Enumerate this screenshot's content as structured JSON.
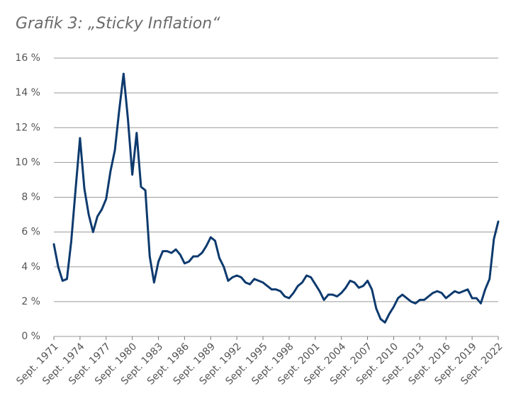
{
  "chart_data": {
    "type": "line",
    "title": "Grafik 3: „Sticky Inflation“",
    "categories": [
      "Sept. 1971",
      null,
      null,
      null,
      null,
      null,
      "Sept. 1974",
      null,
      null,
      null,
      null,
      null,
      "Sept. 1977",
      null,
      null,
      null,
      null,
      null,
      "Sept. 1980",
      null,
      null,
      null,
      null,
      null,
      "Sept. 1983",
      null,
      null,
      null,
      null,
      null,
      "Sept. 1986",
      null,
      null,
      null,
      null,
      null,
      "Sept. 1989",
      null,
      null,
      null,
      null,
      null,
      "Sept. 1992",
      null,
      null,
      null,
      null,
      null,
      "Sept. 1995",
      null,
      null,
      null,
      null,
      null,
      "Sept. 1998",
      null,
      null,
      null,
      null,
      null,
      "Sept. 2001",
      null,
      null,
      null,
      null,
      null,
      "Sept. 2004",
      null,
      null,
      null,
      null,
      null,
      "Sept. 2007",
      null,
      null,
      null,
      null,
      null,
      "Sept. 2010",
      null,
      null,
      null,
      null,
      null,
      "Sept. 2013",
      null,
      null,
      null,
      null,
      null,
      "Sept. 2016",
      null,
      null,
      null,
      null,
      null,
      "Sept. 2019",
      null,
      null,
      null,
      null,
      null,
      "Sept. 2022"
    ],
    "series": [
      {
        "color": "#0d3a6e",
        "values": [
          5.3,
          4.0,
          3.2,
          3.3,
          5.5,
          8.5,
          11.4,
          8.5,
          7.0,
          6.0,
          6.9,
          7.3,
          7.9,
          9.5,
          10.7,
          13.0,
          15.1,
          12.5,
          9.3,
          11.7,
          8.6,
          8.4,
          4.6,
          3.1,
          4.3,
          4.9,
          4.9,
          4.8,
          5.0,
          4.7,
          4.2,
          4.3,
          4.6,
          4.6,
          4.8,
          5.2,
          5.7,
          5.5,
          4.5,
          4.0,
          3.2,
          3.4,
          3.5,
          3.4,
          3.1,
          3.0,
          3.3,
          3.2,
          3.1,
          2.9,
          2.7,
          2.7,
          2.6,
          2.3,
          2.2,
          2.5,
          2.9,
          3.1,
          3.5,
          3.4,
          3.0,
          2.6,
          2.1,
          2.4,
          2.4,
          2.3,
          2.5,
          2.8,
          3.2,
          3.1,
          2.8,
          2.9,
          3.2,
          2.7,
          1.6,
          1.0,
          0.8,
          1.3,
          1.7,
          2.2,
          2.4,
          2.2,
          2.0,
          1.9,
          2.1,
          2.1,
          2.3,
          2.5,
          2.6,
          2.5,
          2.2,
          2.4,
          2.6,
          2.5,
          2.6,
          2.7,
          2.2,
          2.2,
          1.9,
          2.7,
          3.3,
          5.6,
          6.6
        ]
      }
    ],
    "ylim": [
      0,
      16
    ],
    "yticks": [
      {
        "value": 0,
        "label": "0 %"
      },
      {
        "value": 2,
        "label": "2 %"
      },
      {
        "value": 4,
        "label": "4 %"
      },
      {
        "value": 6,
        "label": "6 %"
      },
      {
        "value": 8,
        "label": "8 %"
      },
      {
        "value": 10,
        "label": "10 %"
      },
      {
        "value": 12,
        "label": "12 %"
      },
      {
        "value": 14,
        "label": "14 %"
      },
      {
        "value": 16,
        "label": "16 %"
      }
    ],
    "grid": true
  }
}
